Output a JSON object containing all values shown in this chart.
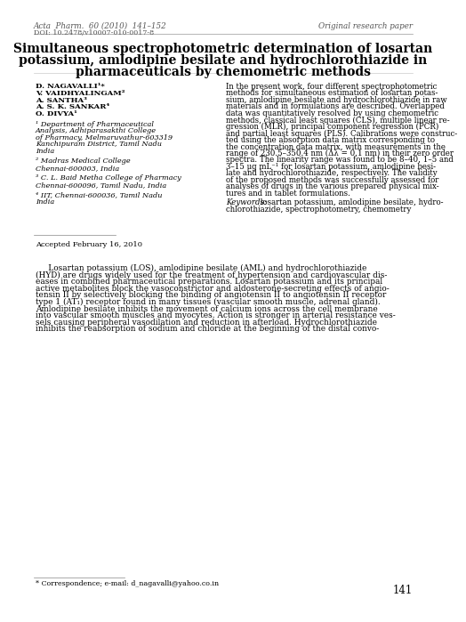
{
  "background_color": "#ffffff",
  "journal_line1": "Acta  Pharm.  60 (2010)  141–152",
  "journal_line2": "DOI: 10.2478/v10007-010-0017-8",
  "top_right_text": "Original research paper",
  "title_line1": "Simultaneous spectrophotometric determination of losartan",
  "title_line2": "potassium, amlodipine besilate and hydrochlorothiazide in",
  "title_line3": "pharmaceuticals by chemometric methods",
  "author1": "D. NAGAVALLI¹*",
  "author2": "V. VAIDHYALINGAM²",
  "author3": "A. SANTHA³",
  "author4": "A. S. K. SANKAR⁴",
  "author5": "O. DIVYA¹",
  "affil1_lines": [
    "¹ Department of Pharmaceutical",
    "Analysis, Adhiparasakthi College",
    "of Pharmacy, Melmaruvathur-603319",
    "Kanchipuram District, Tamil Nadu",
    "India"
  ],
  "affil2_lines": [
    "² Madras Medical College",
    "Chennai-600003, India"
  ],
  "affil3_lines": [
    "³ C. L. Baid Metha College of Pharmacy",
    "Chennai-600096, Tamil Nadu, India"
  ],
  "affil4_lines": [
    "⁴ IIT, Chennai-600036, Tamil Nadu",
    "India"
  ],
  "accepted_text": "Accepted February 16, 2010",
  "abstract_lines": [
    "In the present work, four different spectrophotometric",
    "methods for simultaneous estimation of losartan potas-",
    "sium, amlodipine besilate and hydrochlorothiazide in raw",
    "materials and in formulations are described. Overlapped",
    "data was quantitatively resolved by using chemometric",
    "methods, classical least squares (CLS), multiple linear re-",
    "gression (MLR), principal component regression (PCR)",
    "and partial least squares (PLS). Calibrations were construc-",
    "ted using the absorption data matrix corresponding to",
    "the concentration data matrix, with measurements in the",
    "range of 230.5–350.4 nm (Δλ = 0.1 nm) in their zero order",
    "spectra. The linearity range was found to be 8–40, 1–5 and",
    "3–15 μg mL⁻¹ for losartan potassium, amlodipine besi-",
    "late and hydrochlorothiazide, respectively. The validity",
    "of the proposed methods was successfully assessed for",
    "analyses of drugs in the various prepared physical mix-",
    "tures and in tablet formulations."
  ],
  "keywords_italic": "Keywords:",
  "keywords_rest": " losartan potassium, amlodipine besilate, hydro-",
  "keywords_line2": "chlorothiazide, spectrophotometry, chemometry",
  "intro_indent": "     Losartan potassium (LOS), amlodipine besilate (AML) and hydrochlorothiazide",
  "intro_lines": [
    "(HYD) are drugs widely used for the treatment of hypertension and cardiovascular dis-",
    "eases in combined pharmaceutical preparations. Losartan potassium and its principal",
    "active metabolites block the vasoconstrictor and aldosterone-secreting effects of angio-",
    "tensin II by selectively blocking the binding of angiotensin II to angiotensin II receptor",
    "type 1 (AT₁) receptor found in many tissues (vascular smooth muscle, adrenal gland).",
    "Amlodipine besilate inhibits the movement of calcium ions across the cell membrane",
    "into vascular smooth muscles and myocytes. Action is stronger in arterial resistance ves-",
    "sels causing peripheral vasodilation and reduction in afterload. Hydrochlorothiazide",
    "inhibits the reabsorption of sodium and chloride at the beginning of the distal convo-"
  ],
  "page_number": "141",
  "footnote_line": "* Correspondence; e-mail: d_nagavalli@yahoo.co.in"
}
